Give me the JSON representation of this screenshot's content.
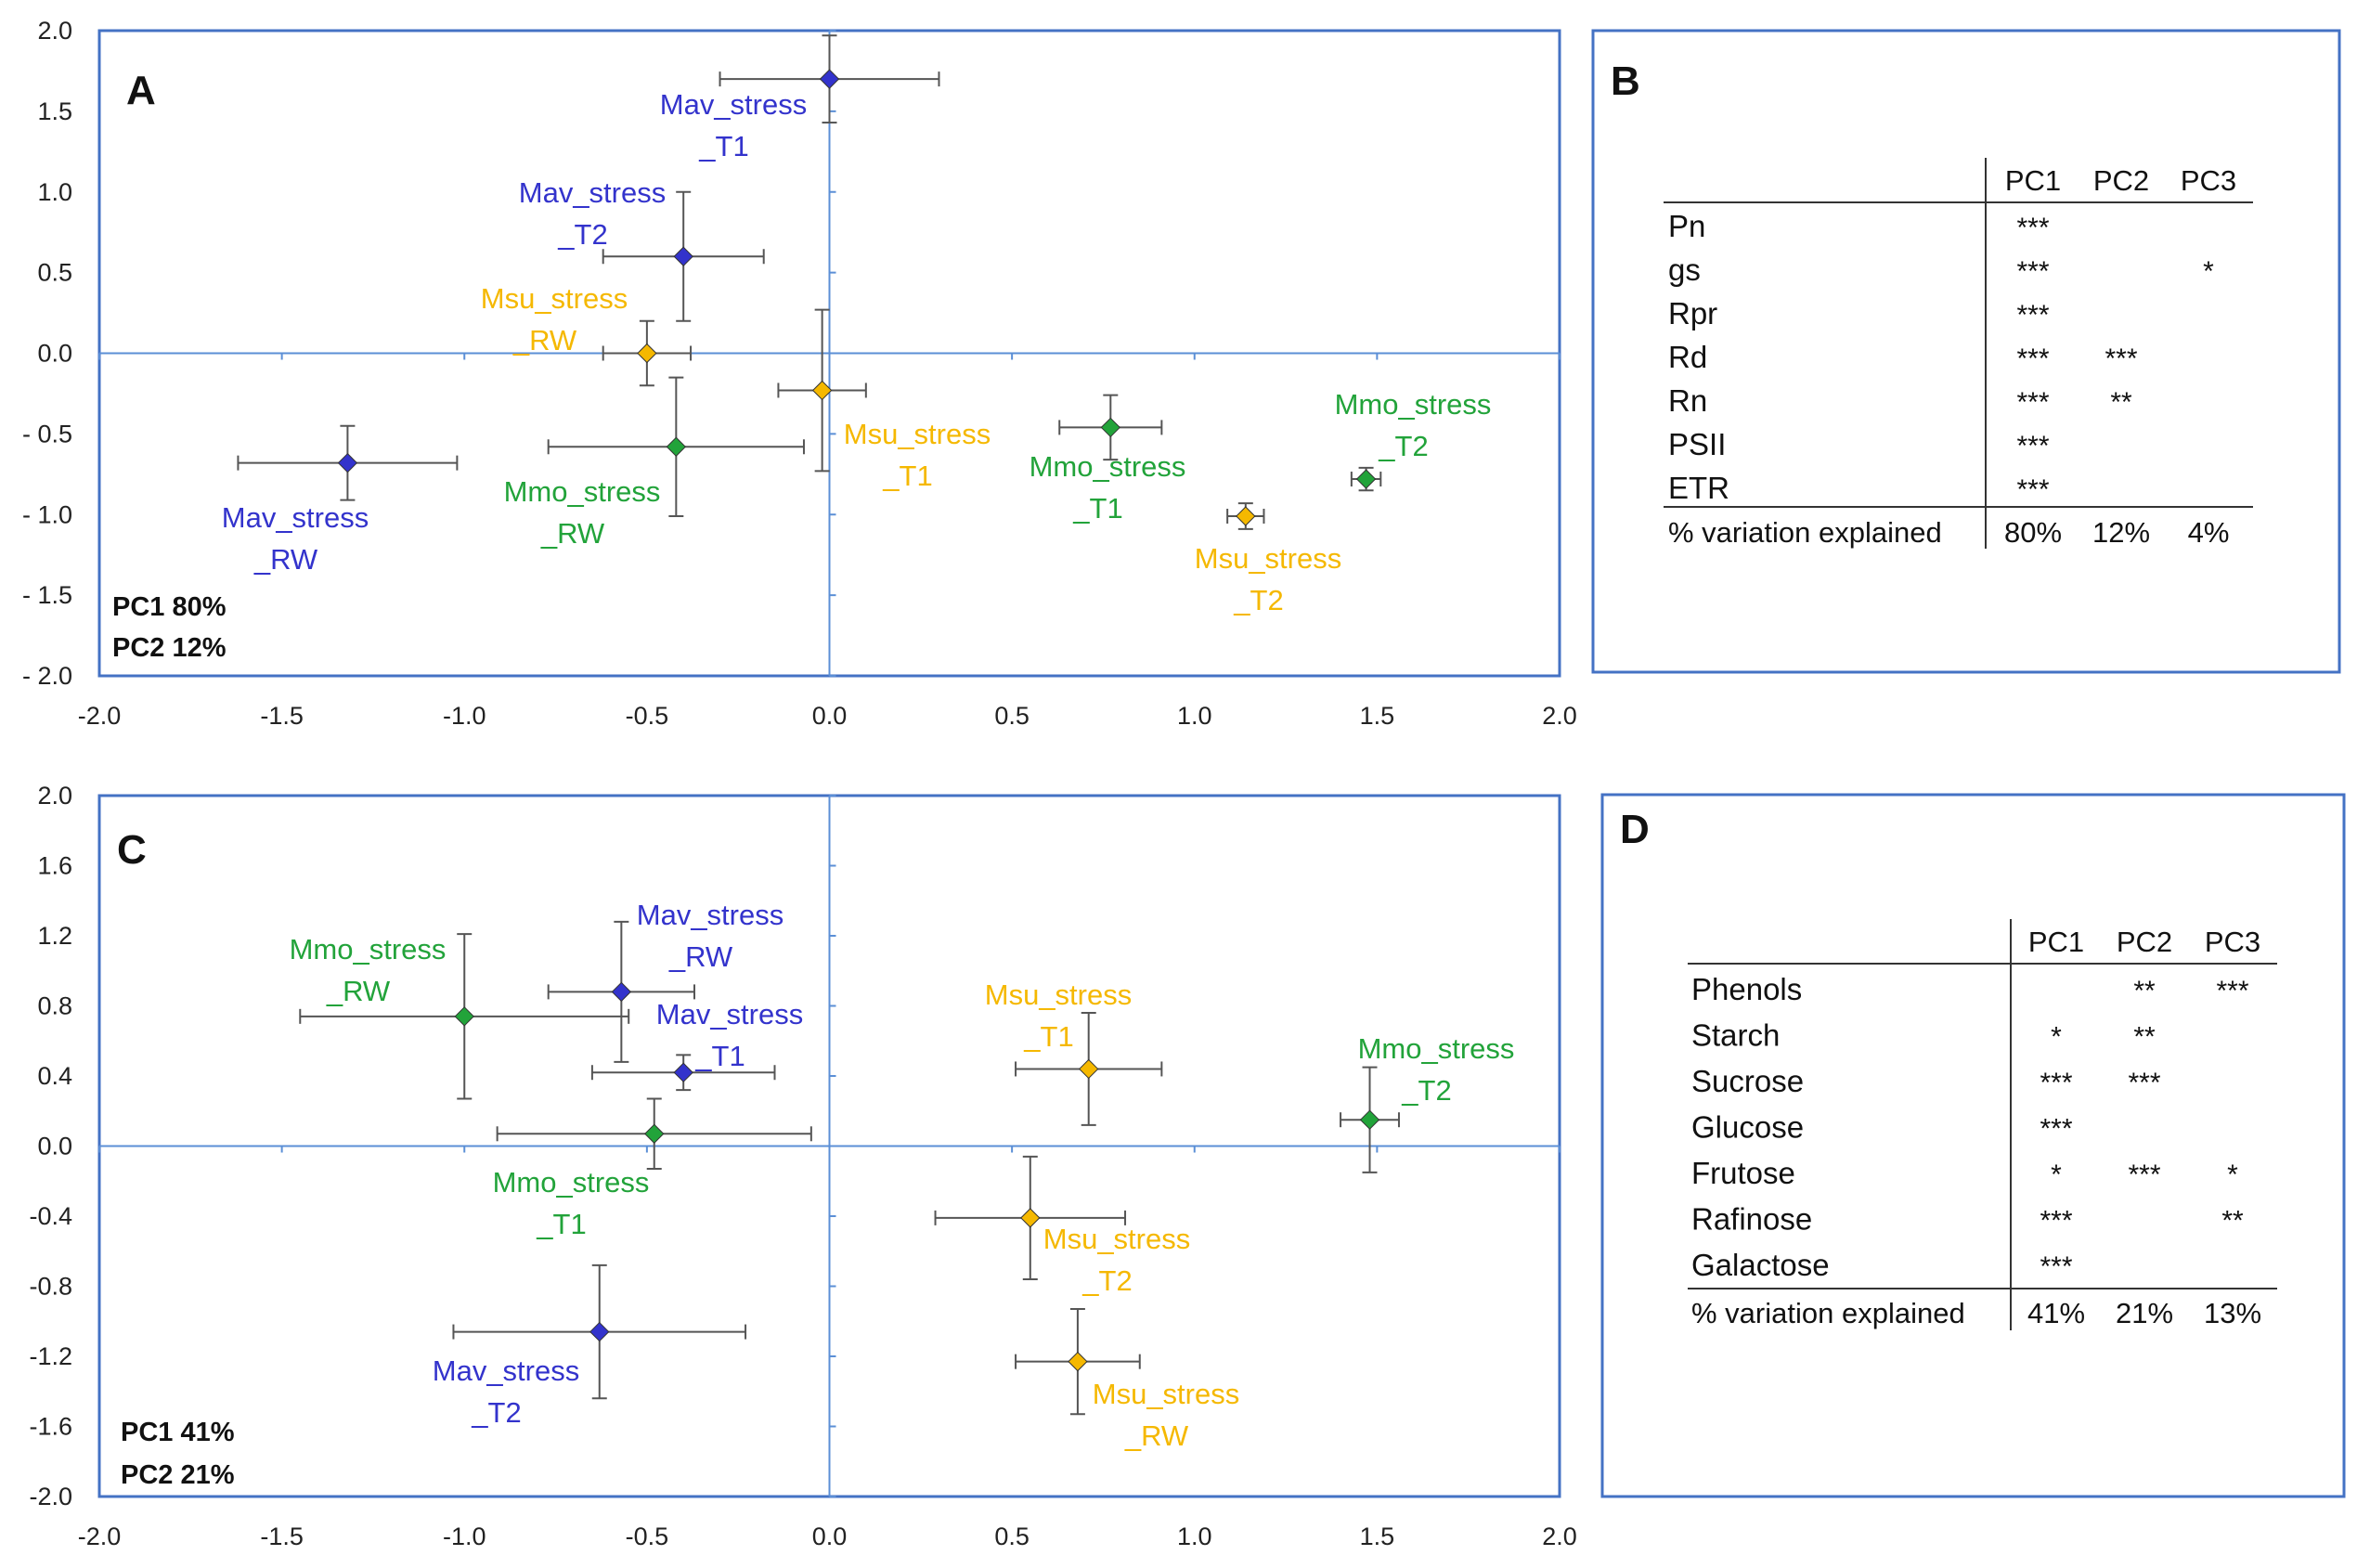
{
  "colors": {
    "Mav": "#3333cc",
    "Mmo": "#22a33a",
    "Msu": "#f5b800",
    "frame": "#4472c4",
    "axis": "#5b8fd6",
    "errorbar": "#555555"
  },
  "chart_data": [
    {
      "panel": "A",
      "type": "scatter",
      "xlim": [
        -2.0,
        2.0
      ],
      "ylim": [
        -2.0,
        2.0
      ],
      "x_ticks": [
        "-2.0",
        "-1.5",
        "-1.0",
        "-0.5",
        "0.0",
        "0.5",
        "1.0",
        "1.5",
        "2.0"
      ],
      "x_tick_values": [
        -2.0,
        -1.5,
        -1.0,
        -0.5,
        0.0,
        0.5,
        1.0,
        1.5,
        2.0
      ],
      "y_ticks": [
        "2.0",
        "1.5",
        "1.0",
        "0.5",
        "0.0",
        "- 0.5",
        "- 1.0",
        "- 1.5",
        "- 2.0"
      ],
      "y_tick_values": [
        2.0,
        1.5,
        1.0,
        0.5,
        0.0,
        -0.5,
        -1.0,
        -1.5,
        -2.0
      ],
      "pc_notes": [
        "PC1 80%",
        "PC2 12%"
      ],
      "points": [
        {
          "group": "Mav",
          "label": [
            "Mav_stress",
            "_T1"
          ],
          "x": 0.0,
          "y": 1.7,
          "xerr": 0.3,
          "yerr": 0.27
        },
        {
          "group": "Mav",
          "label": [
            "Mav_stress",
            "_T2"
          ],
          "x": -0.4,
          "y": 0.6,
          "xerr": 0.22,
          "yerr": 0.4
        },
        {
          "group": "Mav",
          "label": [
            "Mav_stress",
            "_RW"
          ],
          "x": -1.32,
          "y": -0.68,
          "xerr": 0.3,
          "yerr": 0.23
        },
        {
          "group": "Msu",
          "label": [
            "Msu_stress",
            "_RW"
          ],
          "x": -0.5,
          "y": 0.0,
          "xerr": 0.12,
          "yerr": 0.2
        },
        {
          "group": "Msu",
          "label": [
            "Msu_stress",
            "_T1"
          ],
          "x": -0.02,
          "y": -0.23,
          "xerr": 0.12,
          "yerr": 0.5
        },
        {
          "group": "Msu",
          "label": [
            "Msu_stress",
            "_T2"
          ],
          "x": 1.14,
          "y": -1.01,
          "xerr": 0.05,
          "yerr": 0.08
        },
        {
          "group": "Mmo",
          "label": [
            "Mmo_stress",
            "_RW"
          ],
          "x": -0.42,
          "y": -0.58,
          "xerr": 0.35,
          "yerr": 0.43
        },
        {
          "group": "Mmo",
          "label": [
            "Mmo_stress",
            "_T1"
          ],
          "x": 0.77,
          "y": -0.46,
          "xerr": 0.14,
          "yerr": 0.2
        },
        {
          "group": "Mmo",
          "label": [
            "Mmo_stress",
            "_T2"
          ],
          "x": 1.47,
          "y": -0.78,
          "xerr": 0.04,
          "yerr": 0.07
        }
      ]
    },
    {
      "panel": "C",
      "type": "scatter",
      "xlim": [
        -2.0,
        2.0
      ],
      "ylim": [
        -2.0,
        2.0
      ],
      "x_ticks": [
        "-2.0",
        "-1.5",
        "-1.0",
        "-0.5",
        "0.0",
        "0.5",
        "1.0",
        "1.5",
        "2.0"
      ],
      "x_tick_values": [
        -2.0,
        -1.5,
        -1.0,
        -0.5,
        0.0,
        0.5,
        1.0,
        1.5,
        2.0
      ],
      "y_ticks": [
        "2.0",
        "1.6",
        "1.2",
        "0.8",
        "0.4",
        "0.0",
        "-0.4",
        "-0.8",
        "-1.2",
        "-1.6",
        "-2.0"
      ],
      "y_tick_values": [
        2.0,
        1.6,
        1.2,
        0.8,
        0.4,
        0.0,
        -0.4,
        -0.8,
        -1.2,
        -1.6,
        -2.0
      ],
      "pc_notes": [
        "PC1 41%",
        "PC2 21%"
      ],
      "points": [
        {
          "group": "Mav",
          "label": [
            "Mav_stress",
            "_RW"
          ],
          "x": -0.57,
          "y": 0.88,
          "xerr": 0.2,
          "yerr": 0.4
        },
        {
          "group": "Mav",
          "label": [
            "Mav_stress",
            "_T1"
          ],
          "x": -0.4,
          "y": 0.42,
          "xerr": 0.25,
          "yerr": 0.1
        },
        {
          "group": "Mav",
          "label": [
            "Mav_stress",
            "_T2"
          ],
          "x": -0.63,
          "y": -1.06,
          "xerr": 0.4,
          "yerr": 0.38
        },
        {
          "group": "Mmo",
          "label": [
            "Mmo_stress",
            "_RW"
          ],
          "x": -1.0,
          "y": 0.74,
          "xerr": 0.45,
          "yerr": 0.47
        },
        {
          "group": "Mmo",
          "label": [
            "Mmo_stress",
            "_T1"
          ],
          "x": -0.48,
          "y": 0.07,
          "xerr": 0.43,
          "yerr": 0.2
        },
        {
          "group": "Mmo",
          "label": [
            "Mmo_stress",
            "_T2"
          ],
          "x": 1.48,
          "y": 0.15,
          "xerr": 0.08,
          "yerr": 0.3
        },
        {
          "group": "Msu",
          "label": [
            "Msu_stress",
            "_T1"
          ],
          "x": 0.71,
          "y": 0.44,
          "xerr": 0.2,
          "yerr": 0.32
        },
        {
          "group": "Msu",
          "label": [
            "Msu_stress",
            "_T2"
          ],
          "x": 0.55,
          "y": -0.41,
          "xerr": 0.26,
          "yerr": 0.35
        },
        {
          "group": "Msu",
          "label": [
            "Msu_stress",
            "_RW"
          ],
          "x": 0.68,
          "y": -1.23,
          "xerr": 0.17,
          "yerr": 0.3
        }
      ]
    },
    {
      "panel": "B",
      "type": "table",
      "columns": [
        "PC1",
        "PC2",
        "PC3"
      ],
      "rows": [
        {
          "name": "Pn",
          "PC1": "***",
          "PC2": "",
          "PC3": ""
        },
        {
          "name": "gs",
          "PC1": "***",
          "PC2": "",
          "PC3": "*"
        },
        {
          "name": "Rpr",
          "PC1": "***",
          "PC2": "",
          "PC3": ""
        },
        {
          "name": "Rd",
          "PC1": "***",
          "PC2": "***",
          "PC3": ""
        },
        {
          "name": "Rn",
          "PC1": "***",
          "PC2": "**",
          "PC3": ""
        },
        {
          "name": "PSII",
          "PC1": "***",
          "PC2": "",
          "PC3": ""
        },
        {
          "name": "ETR",
          "PC1": "***",
          "PC2": "",
          "PC3": ""
        }
      ],
      "footer": {
        "name": "% variation explained",
        "PC1": "80%",
        "PC2": "12%",
        "PC3": "4%"
      }
    },
    {
      "panel": "D",
      "type": "table",
      "columns": [
        "PC1",
        "PC2",
        "PC3"
      ],
      "rows": [
        {
          "name": "Phenols",
          "PC1": "",
          "PC2": "**",
          "PC3": "***"
        },
        {
          "name": "Starch",
          "PC1": "*",
          "PC2": "**",
          "PC3": ""
        },
        {
          "name": "Sucrose",
          "PC1": "***",
          "PC2": "***",
          "PC3": ""
        },
        {
          "name": "Glucose",
          "PC1": "***",
          "PC2": "",
          "PC3": ""
        },
        {
          "name": "Frutose",
          "PC1": "*",
          "PC2": "***",
          "PC3": "*"
        },
        {
          "name": "Rafinose",
          "PC1": "***",
          "PC2": "",
          "PC3": "**"
        },
        {
          "name": "Galactose",
          "PC1": "***",
          "PC2": "",
          "PC3": ""
        }
      ],
      "footer": {
        "name": "% variation explained",
        "PC1": "41%",
        "PC2": "21%",
        "PC3": "13%"
      }
    }
  ]
}
